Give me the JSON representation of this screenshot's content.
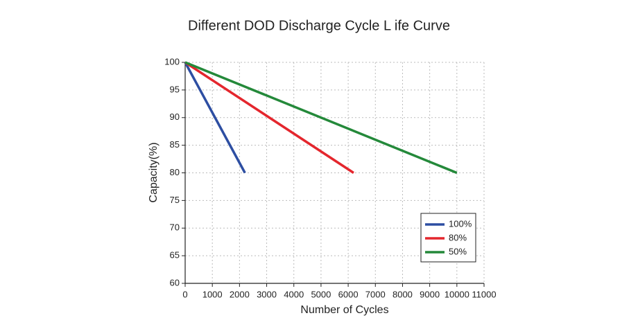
{
  "chart_data": {
    "type": "line",
    "title": "Different DOD Discharge Cycle L ife Curve",
    "x_label": "Number of Cycles",
    "y_label": "Capacity(%)",
    "xlim": [
      0,
      11000
    ],
    "xticks": [
      0,
      1000,
      2000,
      3000,
      4000,
      5000,
      6000,
      7000,
      8000,
      9000,
      10000,
      11000
    ],
    "ylim": [
      60,
      100
    ],
    "yticks": [
      60,
      65,
      70,
      75,
      80,
      85,
      90,
      95,
      100
    ],
    "grid": true,
    "legend": "lower-right",
    "series": [
      {
        "name": "100%",
        "color": "#2d4ea2",
        "x": [
          0,
          2200
        ],
        "values": [
          100,
          80
        ]
      },
      {
        "name": "80%",
        "color": "#e4262d",
        "x": [
          0,
          6200
        ],
        "values": [
          100,
          80
        ]
      },
      {
        "name": "50%",
        "color": "#24893a",
        "x": [
          0,
          10000
        ],
        "values": [
          100,
          80
        ]
      }
    ]
  }
}
